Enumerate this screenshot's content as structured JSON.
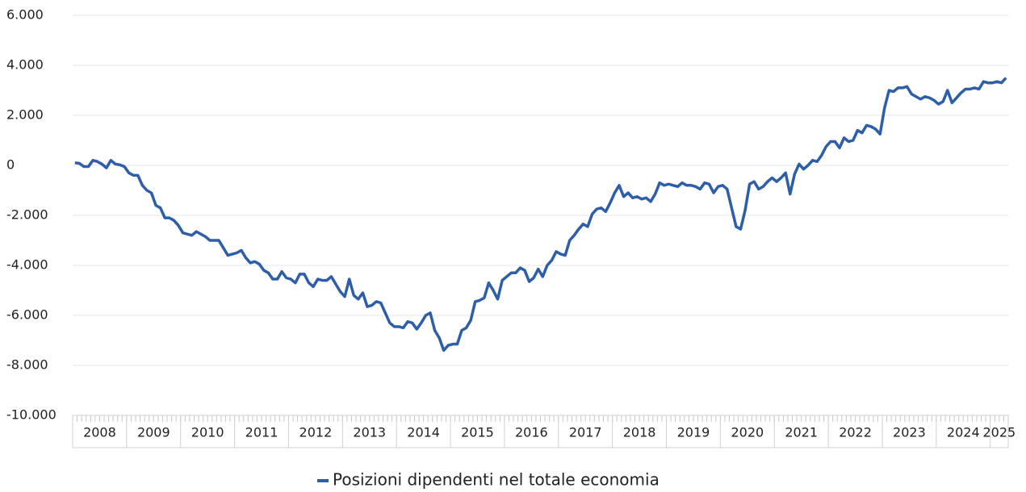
{
  "chart_data": {
    "type": "line",
    "categories": [
      "2008",
      null,
      null,
      null,
      null,
      null,
      null,
      null,
      null,
      null,
      null,
      null,
      "2009",
      null,
      null,
      null,
      null,
      null,
      null,
      null,
      null,
      null,
      null,
      null,
      "2010",
      null,
      null,
      null,
      null,
      null,
      null,
      null,
      null,
      null,
      null,
      null,
      "2011",
      null,
      null,
      null,
      null,
      null,
      null,
      null,
      null,
      null,
      null,
      null,
      "2012",
      null,
      null,
      null,
      null,
      null,
      null,
      null,
      null,
      null,
      null,
      null,
      "2013",
      null,
      null,
      null,
      null,
      null,
      null,
      null,
      null,
      null,
      null,
      null,
      "2014",
      null,
      null,
      null,
      null,
      null,
      null,
      null,
      null,
      null,
      null,
      null,
      "2015",
      null,
      null,
      null,
      null,
      null,
      null,
      null,
      null,
      null,
      null,
      null,
      "2016",
      null,
      null,
      null,
      null,
      null,
      null,
      null,
      null,
      null,
      null,
      null,
      "2017",
      null,
      null,
      null,
      null,
      null,
      null,
      null,
      null,
      null,
      null,
      null,
      "2018",
      null,
      null,
      null,
      null,
      null,
      null,
      null,
      null,
      null,
      null,
      null,
      "2019",
      null,
      null,
      null,
      null,
      null,
      null,
      null,
      null,
      null,
      null,
      null,
      "2020",
      null,
      null,
      null,
      null,
      null,
      null,
      null,
      null,
      null,
      null,
      null,
      "2021",
      null,
      null,
      null,
      null,
      null,
      null,
      null,
      null,
      null,
      null,
      null,
      "2022",
      null,
      null,
      null,
      null,
      null,
      null,
      null,
      null,
      null,
      null,
      null,
      "2023",
      null,
      null,
      null,
      null,
      null,
      null,
      null,
      null,
      null,
      null,
      null,
      "2024",
      null,
      null,
      null,
      null,
      null,
      null,
      null,
      null,
      null,
      null,
      null,
      "2025",
      null,
      null,
      null
    ],
    "series": [
      {
        "name": "Posizioni dipendenti nel totale economia",
        "color": "#2e5ea8",
        "values": [
          100,
          80,
          -50,
          -50,
          200,
          150,
          50,
          -100,
          200,
          50,
          20,
          -50,
          -300,
          -400,
          -400,
          -800,
          -1000,
          -1100,
          -1600,
          -1700,
          -2100,
          -2100,
          -2200,
          -2400,
          -2700,
          -2750,
          -2800,
          -2650,
          -2750,
          -2850,
          -3000,
          -3000,
          -3000,
          -3300,
          -3600,
          -3550,
          -3500,
          -3400,
          -3700,
          -3900,
          -3850,
          -3950,
          -4200,
          -4300,
          -4550,
          -4550,
          -4250,
          -4500,
          -4550,
          -4700,
          -4350,
          -4350,
          -4700,
          -4850,
          -4550,
          -4600,
          -4600,
          -4450,
          -4750,
          -5050,
          -5250,
          -4550,
          -5200,
          -5350,
          -5100,
          -5650,
          -5600,
          -5450,
          -5500,
          -5900,
          -6300,
          -6450,
          -6450,
          -6500,
          -6250,
          -6300,
          -6550,
          -6300,
          -6000,
          -5900,
          -6600,
          -6900,
          -7400,
          -7200,
          -7150,
          -7150,
          -6600,
          -6500,
          -6200,
          -5450,
          -5400,
          -5300,
          -4700,
          -5000,
          -5350,
          -4600,
          -4450,
          -4300,
          -4300,
          -4100,
          -4200,
          -4650,
          -4500,
          -4150,
          -4450,
          -4000,
          -3800,
          -3450,
          -3550,
          -3600,
          -3000,
          -2800,
          -2550,
          -2350,
          -2450,
          -1950,
          -1750,
          -1700,
          -1850,
          -1500,
          -1100,
          -800,
          -1250,
          -1100,
          -1300,
          -1250,
          -1350,
          -1300,
          -1450,
          -1150,
          -700,
          -800,
          -750,
          -800,
          -850,
          -700,
          -800,
          -800,
          -850,
          -950,
          -700,
          -750,
          -1100,
          -850,
          -800,
          -950,
          -1700,
          -2450,
          -2550,
          -1800,
          -750,
          -650,
          -950,
          -850,
          -650,
          -500,
          -650,
          -500,
          -300,
          -1150,
          -350,
          50,
          -150,
          0,
          200,
          150,
          400,
          750,
          950,
          950,
          700,
          1100,
          950,
          1000,
          1400,
          1300,
          1600,
          1550,
          1450,
          1250,
          2300,
          3000,
          2950,
          3100,
          3100,
          3150,
          2850,
          2750,
          2650,
          2750,
          2700,
          2600,
          2450,
          2550,
          3000,
          2500,
          2700,
          2900,
          3050,
          3050,
          3100,
          3050,
          3350,
          3300,
          3300,
          3350,
          3300,
          3500
        ]
      }
    ],
    "ylim": [
      -10000,
      6000
    ],
    "yticks": [
      {
        "value": -10000,
        "label": "-10.000"
      },
      {
        "value": -8000,
        "label": "-8.000"
      },
      {
        "value": -6000,
        "label": "-6.000"
      },
      {
        "value": -4000,
        "label": "-4.000"
      },
      {
        "value": -2000,
        "label": "-2.000"
      },
      0,
      {
        "value": 2000,
        "label": "2.000"
      },
      {
        "value": 4000,
        "label": "4.000"
      },
      {
        "value": 6000,
        "label": "6.000"
      }
    ],
    "grid": true,
    "legend": "bottom"
  }
}
